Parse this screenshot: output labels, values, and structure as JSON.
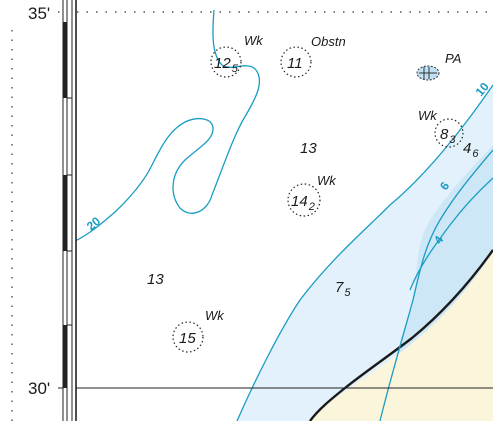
{
  "latitude_labels": {
    "north": "35'",
    "south": "30'"
  },
  "soundings": [
    {
      "id": "s1",
      "main": "12",
      "sub": "5",
      "tag": "Wk"
    },
    {
      "id": "s2",
      "main": "11",
      "sub": "",
      "tag": "Obstn"
    },
    {
      "id": "s3",
      "main": "14",
      "sub": "2",
      "tag": "Wk"
    },
    {
      "id": "s4",
      "main": "15",
      "sub": "",
      "tag": "Wk"
    },
    {
      "id": "s5",
      "main": "8",
      "sub": "3",
      "tag": "Wk"
    },
    {
      "id": "s6",
      "main": "13",
      "sub": ""
    },
    {
      "id": "s7",
      "main": "13",
      "sub": ""
    },
    {
      "id": "s8",
      "main": "7",
      "sub": "5"
    },
    {
      "id": "s9",
      "main": "4",
      "sub": "6"
    }
  ],
  "pa_label": "PA",
  "contour_labels": {
    "c20": "20",
    "c10": "10",
    "c6": "6",
    "c4": "4"
  },
  "colors": {
    "shallow_water": "#e2f1fb",
    "deeper_shallow": "#c8e6f5",
    "land": "#fbf5dc",
    "contour": "#1a9dc4",
    "coastline": "#1a1a1a"
  }
}
